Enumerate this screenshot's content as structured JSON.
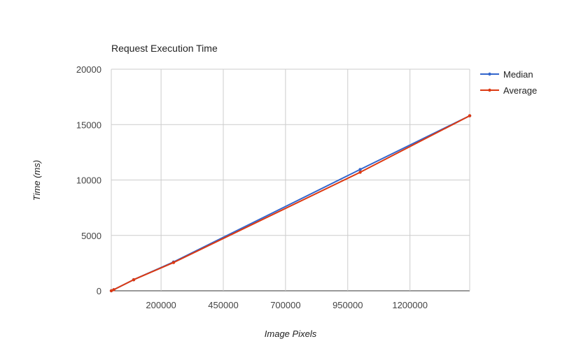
{
  "chart_data": {
    "type": "line",
    "title": "Request Execution Time",
    "xlabel": "Image Pixels",
    "ylabel": "Time (ms)",
    "xlim": [
      0,
      1440000
    ],
    "ylim": [
      0,
      20000
    ],
    "xticks": [
      200000,
      450000,
      700000,
      950000,
      1200000
    ],
    "yticks": [
      0,
      5000,
      10000,
      15000,
      20000
    ],
    "grid": true,
    "legend_position": "right",
    "series": [
      {
        "name": "Median",
        "color": "#3366cc",
        "x": [
          0,
          10000,
          90000,
          250000,
          1000000,
          1440000
        ],
        "y": [
          0,
          100,
          1000,
          2600,
          10950,
          15800
        ]
      },
      {
        "name": "Average",
        "color": "#dc3912",
        "x": [
          0,
          10000,
          90000,
          250000,
          1000000,
          1440000
        ],
        "y": [
          0,
          100,
          1000,
          2550,
          10700,
          15800
        ]
      }
    ]
  }
}
